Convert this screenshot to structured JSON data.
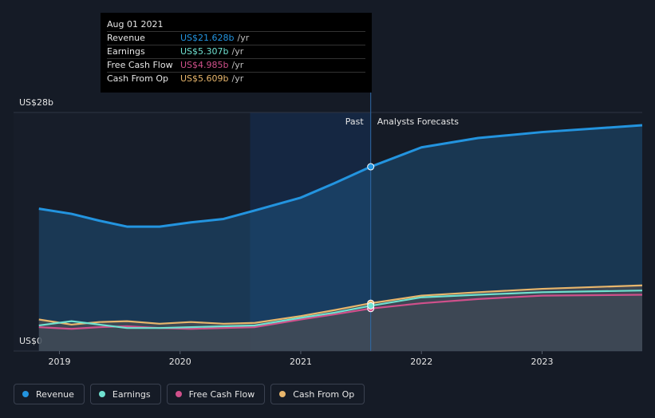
{
  "chart_data": {
    "type": "line",
    "x": [
      2018.83,
      2019.1,
      2019.33,
      2019.56,
      2019.83,
      2020.09,
      2020.36,
      2020.62,
      2021.0,
      2021.28,
      2021.58,
      2022.0,
      2022.47,
      2023.0,
      2023.83
    ],
    "series": [
      {
        "name": "Revenue",
        "color": "#2394df",
        "values": [
          16.7,
          16.1,
          15.3,
          14.6,
          14.6,
          15.1,
          15.5,
          16.5,
          18.0,
          19.7,
          21.628,
          23.9,
          25.0,
          25.7,
          26.5
        ],
        "highlight_label": "US$21.628b"
      },
      {
        "name": "Earnings",
        "color": "#6fe1d0",
        "values": [
          3.0,
          3.5,
          3.1,
          2.7,
          2.7,
          2.8,
          2.9,
          3.0,
          3.9,
          4.5,
          5.307,
          6.3,
          6.6,
          6.9,
          7.1
        ],
        "highlight_label": "US$5.307b"
      },
      {
        "name": "Free Cash Flow",
        "color": "#d0508b",
        "values": [
          2.8,
          2.6,
          2.8,
          2.9,
          2.7,
          2.6,
          2.7,
          2.8,
          3.7,
          4.3,
          4.985,
          5.6,
          6.1,
          6.5,
          6.6
        ],
        "highlight_label": "US$4.985b"
      },
      {
        "name": "Cash From Op",
        "color": "#e8b66c",
        "values": [
          3.7,
          3.1,
          3.4,
          3.5,
          3.2,
          3.4,
          3.2,
          3.3,
          4.1,
          4.8,
          5.609,
          6.5,
          6.9,
          7.3,
          7.7
        ],
        "highlight_label": "US$5.609b"
      }
    ],
    "xlim": [
      2018.62,
      2023.83
    ],
    "xticks": [
      2019,
      2020,
      2021,
      2022,
      2023
    ],
    "ylim": [
      0,
      28
    ],
    "yticks": [
      {
        "value": 0,
        "label": "US$0"
      },
      {
        "value": 28,
        "label": "US$28b"
      }
    ],
    "divider": 2021.58,
    "past_label": "Past",
    "forecast_label": "Analysts Forecasts",
    "tooltip_title": "Aug 01 2021",
    "tooltip_index": 10,
    "tooltip_unit": "/yr",
    "legend": "bottom-left"
  }
}
